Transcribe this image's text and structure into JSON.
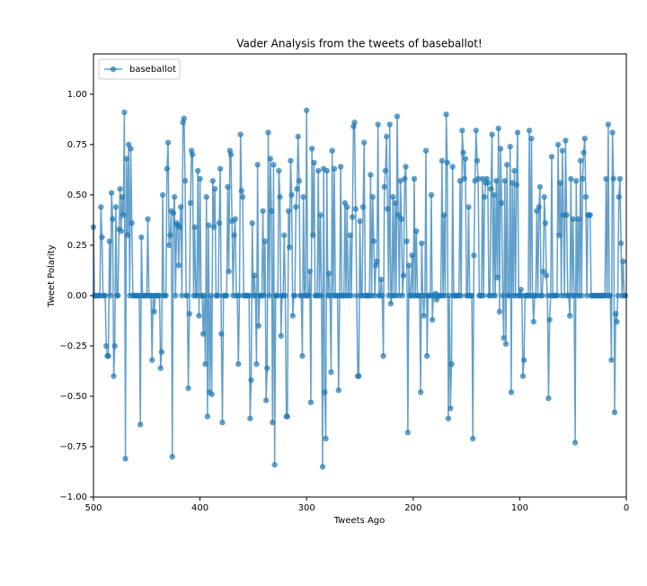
{
  "chart_data": {
    "type": "line",
    "title": "Vader Analysis from the tweets of baseballot!",
    "xlabel": "Tweets Ago",
    "ylabel": "Tweet Polarity",
    "legend": "upper left",
    "xlim": [
      500,
      0
    ],
    "xticks": [
      500,
      400,
      300,
      200,
      100,
      0
    ],
    "ylim": [
      -1,
      1.2
    ],
    "yticks": [
      {
        "value": -1,
        "label": "−1.00"
      },
      {
        "value": -0.75,
        "label": "−0.75"
      },
      {
        "value": -0.5,
        "label": "−0.50"
      },
      {
        "value": -0.25,
        "label": "−0.25"
      },
      {
        "value": 0,
        "label": "0.00"
      },
      {
        "value": 0.25,
        "label": "0.25"
      },
      {
        "value": 0.5,
        "label": "0.50"
      },
      {
        "value": 0.75,
        "label": "0.75"
      },
      {
        "value": 1,
        "label": "1.00"
      }
    ],
    "x": [
      500,
      499,
      498,
      497,
      496,
      495,
      494,
      493,
      492,
      491,
      490,
      489,
      488,
      487,
      486,
      485,
      484,
      483,
      482,
      481,
      480,
      479,
      478,
      477,
      476,
      475,
      474,
      473,
      472,
      471,
      470,
      469,
      468,
      467,
      466,
      465,
      464,
      463,
      462,
      461,
      460,
      459,
      458,
      457,
      456,
      455,
      454,
      453,
      452,
      451,
      450,
      449,
      448,
      447,
      446,
      445,
      444,
      443,
      442,
      441,
      440,
      439,
      438,
      437,
      436,
      435,
      434,
      433,
      432,
      431,
      430,
      429,
      428,
      427,
      426,
      425,
      424,
      423,
      422,
      421,
      420,
      419,
      418,
      417,
      416,
      415,
      414,
      413,
      412,
      411,
      410,
      409,
      408,
      407,
      406,
      405,
      404,
      403,
      402,
      401,
      400,
      399,
      398,
      397,
      396,
      395,
      394,
      393,
      392,
      391,
      390,
      389,
      388,
      387,
      386,
      385,
      384,
      383,
      382,
      381,
      380,
      379,
      378,
      377,
      376,
      375,
      374,
      373,
      372,
      371,
      370,
      369,
      368,
      367,
      366,
      365,
      364,
      363,
      362,
      361,
      360,
      359,
      358,
      357,
      356,
      355,
      354,
      353,
      352,
      351,
      350,
      349,
      348,
      347,
      346,
      345,
      344,
      343,
      342,
      341,
      340,
      339,
      338,
      337,
      336,
      335,
      334,
      333,
      332,
      331,
      330,
      329,
      328,
      327,
      326,
      325,
      324,
      323,
      322,
      321,
      320,
      319,
      318,
      317,
      316,
      315,
      314,
      313,
      312,
      311,
      310,
      309,
      308,
      307,
      306,
      305,
      304,
      303,
      302,
      301,
      300,
      299,
      298,
      297,
      296,
      295,
      294,
      293,
      292,
      291,
      290,
      289,
      288,
      287,
      286,
      285,
      284,
      283,
      282,
      281,
      280,
      279,
      278,
      277,
      276,
      275,
      274,
      273,
      272,
      271,
      270,
      269,
      268,
      267,
      266,
      265,
      264,
      263,
      262,
      261,
      260,
      259,
      258,
      257,
      256,
      255,
      254,
      253,
      252,
      251,
      250,
      249,
      248,
      247,
      246,
      245,
      244,
      243,
      242,
      241,
      240,
      239,
      238,
      237,
      236,
      235,
      234,
      233,
      232,
      231,
      230,
      229,
      228,
      227,
      226,
      225,
      224,
      223,
      222,
      221,
      220,
      219,
      218,
      217,
      216,
      215,
      214,
      213,
      212,
      211,
      210,
      209,
      208,
      207,
      206,
      205,
      204,
      203,
      202,
      201,
      200,
      199,
      198,
      197,
      196,
      195,
      194,
      193,
      192,
      191,
      190,
      189,
      188,
      187,
      186,
      185,
      184,
      183,
      182,
      181,
      180,
      179,
      178,
      177,
      176,
      175,
      174,
      173,
      172,
      171,
      170,
      169,
      168,
      167,
      166,
      165,
      164,
      163,
      162,
      161,
      160,
      159,
      158,
      157,
      156,
      155,
      154,
      153,
      152,
      151,
      150,
      149,
      148,
      147,
      146,
      145,
      144,
      143,
      142,
      141,
      140,
      139,
      138,
      137,
      136,
      135,
      134,
      133,
      132,
      131,
      130,
      129,
      128,
      127,
      126,
      125,
      124,
      123,
      122,
      121,
      120,
      119,
      118,
      117,
      116,
      115,
      114,
      113,
      112,
      111,
      110,
      109,
      108,
      107,
      106,
      105,
      104,
      103,
      102,
      101,
      100,
      99,
      98,
      97,
      96,
      95,
      94,
      93,
      92,
      91,
      90,
      89,
      88,
      87,
      86,
      85,
      84,
      83,
      82,
      81,
      80,
      79,
      78,
      77,
      76,
      75,
      74,
      73,
      72,
      71,
      70,
      69,
      68,
      67,
      66,
      65,
      64,
      63,
      62,
      61,
      60,
      59,
      58,
      57,
      56,
      55,
      54,
      53,
      52,
      51,
      50,
      49,
      48,
      47,
      46,
      45,
      44,
      43,
      42,
      41,
      40,
      39,
      38,
      37,
      36,
      35,
      34,
      33,
      32,
      31,
      30,
      29,
      28,
      27,
      26,
      25,
      24,
      23,
      22,
      21,
      20,
      19,
      18,
      17,
      16,
      15,
      14,
      13,
      12,
      11,
      10,
      9,
      8,
      7,
      6,
      5,
      4,
      3,
      2,
      1
    ],
    "series": [
      {
        "name": "baseballot",
        "color": "#1f77b4",
        "values": [
          0.34,
          0,
          0,
          0,
          0,
          0,
          0,
          0.44,
          0.29,
          0,
          0,
          0,
          -0.25,
          -0.3,
          -0.3,
          0.27,
          0,
          0.51,
          0.38,
          -0.4,
          -0.25,
          0.44,
          0,
          0,
          0.33,
          0.53,
          0.32,
          0.49,
          0.4,
          0.91,
          -0.81,
          0.68,
          0.3,
          0.75,
          0,
          0.73,
          0.36,
          0,
          0,
          0,
          0,
          0,
          0,
          0,
          -0.64,
          0.29,
          0,
          0,
          0,
          0,
          0,
          0.38,
          0,
          0,
          0,
          -0.32,
          0,
          -0.08,
          0,
          0,
          0,
          0,
          0,
          -0.36,
          -0.28,
          0.5,
          0,
          0,
          0,
          0.63,
          0.76,
          0.25,
          0.3,
          0.42,
          -0.8,
          0.41,
          0.49,
          0,
          0.36,
          0.35,
          0.15,
          0.34,
          0.44,
          0,
          0.86,
          0.88,
          0.57,
          0,
          0,
          -0.46,
          -0.09,
          0.46,
          0.72,
          0.7,
          0,
          0.34,
          0,
          0,
          0.62,
          -0.1,
          0.58,
          0,
          0,
          -0.19,
          0,
          -0.34,
          0.49,
          -0.6,
          0.35,
          -0.48,
          0,
          -0.49,
          0.57,
          0.34,
          0.53,
          0,
          0,
          0,
          0.36,
          0.63,
          -0.19,
          -0.63,
          0,
          0,
          0,
          0,
          0.54,
          0.12,
          0.72,
          0.7,
          0.37,
          0,
          0.3,
          0.38,
          0,
          0,
          -0.34,
          0,
          0.8,
          0.52,
          0.49,
          0,
          0,
          0,
          0,
          0,
          0,
          -0.61,
          -0.42,
          0.36,
          0,
          0.1,
          0,
          -0.34,
          0.65,
          -0.15,
          0,
          0,
          0,
          0.42,
          0,
          0.27,
          -0.52,
          -0.36,
          0.81,
          0,
          0.68,
          0.42,
          -0.63,
          0.65,
          -0.84,
          0,
          0,
          0,
          0.62,
          0.49,
          -0.2,
          0,
          0,
          0.3,
          0,
          -0.6,
          -0.6,
          0.42,
          0.24,
          0.67,
          0.5,
          -0.1,
          0,
          0,
          0.44,
          0.53,
          0.79,
          0.57,
          0,
          0,
          -0.3,
          0.49,
          0,
          0,
          0.92,
          0,
          0,
          0.12,
          -0.53,
          0.73,
          0.3,
          0.66,
          0,
          0,
          0,
          0.62,
          0,
          0.4,
          0,
          -0.85,
          0.63,
          -0.48,
          -0.71,
          0.62,
          0,
          0.11,
          0,
          -0.38,
          0.72,
          0,
          0.63,
          0,
          0,
          0,
          -0.47,
          0,
          0.64,
          0,
          0,
          0,
          0.46,
          0,
          0.44,
          0,
          0,
          0.3,
          0,
          0.39,
          0.84,
          0.86,
          0.43,
          0,
          -0.4,
          -0.4,
          0.37,
          0,
          0,
          0.44,
          0.76,
          0,
          0,
          0,
          0,
          0,
          0.6,
          0,
          0.49,
          0.27,
          0,
          0.15,
          0.17,
          0.85,
          0,
          0,
          0.08,
          0,
          -0.3,
          0.54,
          0.62,
          0.79,
          0.43,
          0,
          0.85,
          -0.04,
          0,
          0.49,
          0,
          0.46,
          0,
          0.89,
          0.4,
          0,
          0.57,
          0.38,
          0,
          0.1,
          0.58,
          0.64,
          0.27,
          -0.68,
          0.15,
          0,
          0,
          0.2,
          0,
          0.58,
          0,
          0.32,
          0,
          0,
          0,
          -0.48,
          0.26,
          0,
          -0.1,
          0,
          0.72,
          -0.3,
          0,
          0,
          0,
          0.5,
          -0.12,
          0,
          0,
          0.01,
          -0.02,
          0,
          0,
          0,
          0,
          0.67,
          0,
          0.4,
          0,
          0.9,
          0.66,
          -0.61,
          0,
          -0.56,
          -0.34,
          0.64,
          0,
          0,
          0,
          0,
          0,
          0,
          0.57,
          0,
          0.82,
          0.71,
          0.58,
          0.68,
          0,
          0,
          0.44,
          0,
          0,
          0,
          -0.71,
          0.2,
          0.57,
          0.82,
          0.67,
          0.58,
          0,
          0,
          0,
          0.58,
          0,
          0.49,
          0.56,
          0.58,
          0.56,
          0,
          0,
          0.53,
          0.8,
          0,
          0.5,
          0,
          0.57,
          0.09,
          0.83,
          -0.08,
          0.73,
          0.46,
          0,
          -0.21,
          0.57,
          -0.24,
          0.65,
          0,
          0,
          0.74,
          -0.48,
          0.56,
          0,
          0.62,
          0,
          0.55,
          0.81,
          0,
          0,
          0.03,
          0,
          -0.4,
          -0.32,
          0,
          0,
          0,
          0,
          0.82,
          0,
          0.78,
          0,
          -0.13,
          0,
          0,
          0.42,
          0,
          0.44,
          0.54,
          0,
          0,
          0.12,
          0.49,
          0.36,
          0.1,
          0,
          -0.51,
          -0.12,
          0,
          0.69,
          0,
          0,
          0,
          0,
          0,
          0.75,
          0.3,
          0.56,
          0,
          0.72,
          0.4,
          0,
          0.77,
          0.4,
          0,
          0,
          -0.1,
          0.58,
          0,
          0.38,
          0,
          -0.73,
          0.57,
          0,
          0.38,
          0,
          0.67,
          0,
          0.58,
          0.71,
          0.78,
          0.49,
          0,
          0.4,
          0.4,
          0.4,
          0,
          0,
          0,
          0,
          0,
          0,
          0,
          0,
          0,
          0,
          0,
          0,
          0,
          0,
          0.58,
          0,
          0.85,
          0,
          0,
          -0.32,
          0.81,
          0.58,
          -0.58,
          -0.09,
          -0.13,
          0,
          0.49,
          0.58,
          0.26,
          0,
          0.17,
          0,
          0
        ]
      }
    ]
  }
}
